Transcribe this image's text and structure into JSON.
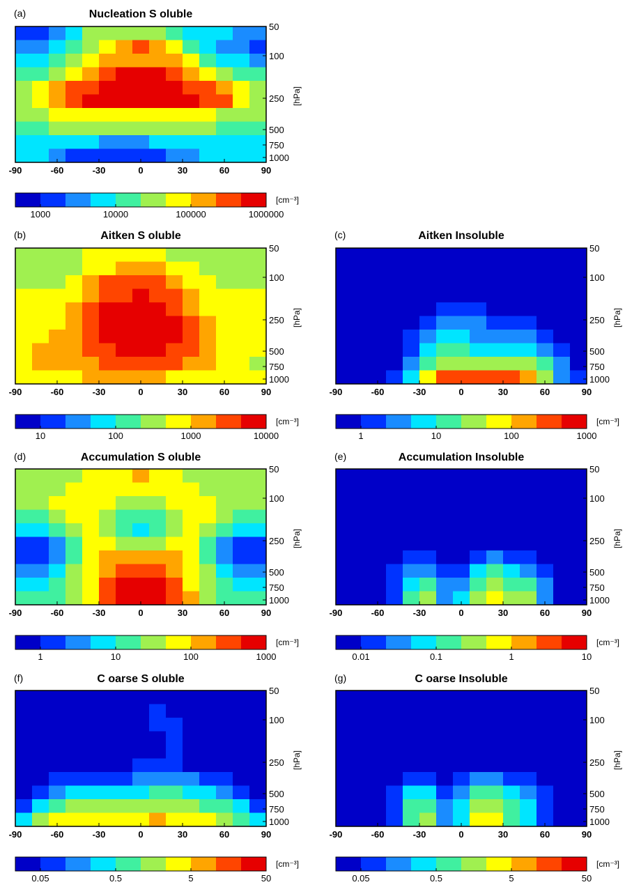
{
  "colors": [
    "#0000c8",
    "#0033ff",
    "#1a8cff",
    "#00e5ff",
    "#40f0a0",
    "#a0f050",
    "#ffff00",
    "#ffa500",
    "#ff4500",
    "#e60000"
  ],
  "common": {
    "lat_ticks": [
      "-90",
      "-60",
      "-30",
      "0",
      "30",
      "60",
      "90"
    ],
    "pressure_ticks": [
      "50",
      "100",
      "250",
      "500",
      "750",
      "1000"
    ],
    "pressure_unit": "[hPa]",
    "colorbar_unit": "[cm⁻³]"
  },
  "chart_data": [
    {
      "id": "a",
      "panel_label": "(a)",
      "title": "Nucleation S oluble",
      "type": "heatmap",
      "colorbar_ticks": [
        "1000",
        "10000",
        "100000",
        "1000000"
      ],
      "levels": [
        [
          1,
          1,
          2,
          3,
          5,
          5,
          5,
          5,
          5,
          4,
          3,
          3,
          3,
          2,
          2
        ],
        [
          2,
          2,
          3,
          4,
          5,
          6,
          7,
          8,
          7,
          6,
          4,
          3,
          2,
          2,
          1
        ],
        [
          3,
          3,
          4,
          5,
          6,
          7,
          7,
          7,
          7,
          7,
          6,
          4,
          3,
          3,
          2
        ],
        [
          4,
          4,
          5,
          6,
          7,
          8,
          9,
          9,
          9,
          8,
          7,
          6,
          5,
          4,
          4
        ],
        [
          5,
          6,
          7,
          8,
          8,
          9,
          9,
          9,
          9,
          9,
          8,
          8,
          7,
          6,
          5
        ],
        [
          5,
          6,
          7,
          8,
          9,
          9,
          9,
          9,
          9,
          9,
          9,
          8,
          8,
          6,
          5
        ],
        [
          5,
          5,
          6,
          6,
          6,
          6,
          6,
          6,
          6,
          6,
          6,
          6,
          5,
          5,
          5
        ],
        [
          4,
          4,
          5,
          5,
          5,
          5,
          5,
          5,
          5,
          5,
          5,
          5,
          4,
          4,
          4
        ],
        [
          3,
          3,
          3,
          3,
          3,
          2,
          2,
          2,
          3,
          3,
          3,
          3,
          3,
          3,
          3
        ],
        [
          3,
          3,
          2,
          1,
          1,
          1,
          1,
          1,
          1,
          2,
          2,
          3,
          3,
          3,
          3
        ]
      ]
    },
    {
      "id": "b",
      "panel_label": "(b)",
      "title": "Aitken S oluble",
      "type": "heatmap",
      "colorbar_ticks": [
        "10",
        "100",
        "1000",
        "10000"
      ],
      "levels": [
        [
          5,
          5,
          5,
          5,
          6,
          6,
          6,
          6,
          6,
          5,
          5,
          5,
          5,
          5,
          5
        ],
        [
          5,
          5,
          5,
          5,
          6,
          6,
          7,
          7,
          7,
          6,
          6,
          5,
          5,
          5,
          5
        ],
        [
          5,
          5,
          5,
          6,
          7,
          8,
          8,
          8,
          8,
          7,
          6,
          6,
          5,
          5,
          5
        ],
        [
          6,
          6,
          6,
          6,
          7,
          8,
          8,
          9,
          8,
          8,
          7,
          6,
          6,
          6,
          6
        ],
        [
          6,
          6,
          6,
          7,
          8,
          9,
          9,
          9,
          9,
          8,
          7,
          6,
          6,
          6,
          6
        ],
        [
          6,
          6,
          6,
          7,
          8,
          9,
          9,
          9,
          9,
          9,
          8,
          7,
          6,
          6,
          6
        ],
        [
          6,
          6,
          7,
          7,
          8,
          9,
          9,
          9,
          9,
          9,
          8,
          7,
          6,
          6,
          6
        ],
        [
          6,
          7,
          7,
          7,
          8,
          8,
          9,
          9,
          9,
          8,
          8,
          7,
          6,
          6,
          6
        ],
        [
          6,
          7,
          7,
          7,
          7,
          8,
          8,
          8,
          8,
          8,
          7,
          7,
          6,
          6,
          5
        ],
        [
          6,
          6,
          6,
          6,
          7,
          7,
          7,
          7,
          7,
          6,
          6,
          6,
          6,
          6,
          6
        ]
      ]
    },
    {
      "id": "c",
      "panel_label": "(c)",
      "title": "Aitken Insoluble",
      "type": "heatmap",
      "colorbar_ticks": [
        "1",
        "10",
        "100",
        "1000"
      ],
      "levels": [
        [
          0,
          0,
          0,
          0,
          0,
          0,
          0,
          0,
          0,
          0,
          0,
          0,
          0,
          0,
          0
        ],
        [
          0,
          0,
          0,
          0,
          0,
          0,
          0,
          0,
          0,
          0,
          0,
          0,
          0,
          0,
          0
        ],
        [
          0,
          0,
          0,
          0,
          0,
          0,
          0,
          0,
          0,
          0,
          0,
          0,
          0,
          0,
          0
        ],
        [
          0,
          0,
          0,
          0,
          0,
          0,
          0,
          0,
          0,
          0,
          0,
          0,
          0,
          0,
          0
        ],
        [
          0,
          0,
          0,
          0,
          0,
          0,
          1,
          1,
          1,
          0,
          0,
          0,
          0,
          0,
          0
        ],
        [
          0,
          0,
          0,
          0,
          0,
          1,
          2,
          2,
          2,
          1,
          1,
          1,
          0,
          0,
          0
        ],
        [
          0,
          0,
          0,
          0,
          1,
          2,
          3,
          3,
          2,
          2,
          2,
          2,
          1,
          0,
          0
        ],
        [
          0,
          0,
          0,
          0,
          1,
          3,
          4,
          4,
          3,
          3,
          3,
          3,
          2,
          1,
          0
        ],
        [
          0,
          0,
          0,
          0,
          2,
          4,
          5,
          5,
          5,
          5,
          5,
          5,
          4,
          2,
          0
        ],
        [
          0,
          0,
          0,
          1,
          3,
          6,
          8,
          8,
          8,
          8,
          8,
          7,
          5,
          2,
          1
        ]
      ]
    },
    {
      "id": "d",
      "panel_label": "(d)",
      "title": "Accumulation S oluble",
      "type": "heatmap",
      "colorbar_ticks": [
        "1",
        "10",
        "100",
        "1000"
      ],
      "levels": [
        [
          5,
          5,
          5,
          5,
          6,
          6,
          6,
          7,
          6,
          6,
          5,
          5,
          5,
          5,
          5
        ],
        [
          5,
          5,
          5,
          6,
          6,
          6,
          6,
          6,
          6,
          6,
          6,
          5,
          5,
          5,
          5
        ],
        [
          5,
          5,
          6,
          6,
          6,
          6,
          5,
          5,
          5,
          6,
          6,
          6,
          5,
          5,
          5
        ],
        [
          4,
          4,
          5,
          6,
          6,
          5,
          4,
          4,
          4,
          5,
          6,
          6,
          5,
          4,
          4
        ],
        [
          3,
          3,
          4,
          5,
          6,
          5,
          4,
          3,
          4,
          5,
          6,
          5,
          4,
          3,
          3
        ],
        [
          1,
          1,
          2,
          4,
          6,
          6,
          5,
          5,
          5,
          6,
          6,
          4,
          2,
          1,
          1
        ],
        [
          1,
          1,
          2,
          4,
          6,
          7,
          7,
          7,
          7,
          7,
          6,
          4,
          2,
          1,
          1
        ],
        [
          2,
          2,
          3,
          5,
          6,
          7,
          8,
          8,
          8,
          7,
          6,
          5,
          3,
          2,
          2
        ],
        [
          3,
          3,
          4,
          5,
          6,
          8,
          9,
          9,
          9,
          8,
          6,
          5,
          4,
          3,
          3
        ],
        [
          4,
          4,
          4,
          5,
          6,
          8,
          9,
          9,
          9,
          8,
          7,
          5,
          4,
          4,
          4
        ]
      ]
    },
    {
      "id": "e",
      "panel_label": "(e)",
      "title": "Accumulation Insoluble",
      "type": "heatmap",
      "colorbar_ticks": [
        "0.01",
        "0.1",
        "1",
        "10"
      ],
      "levels": [
        [
          0,
          0,
          0,
          0,
          0,
          0,
          0,
          0,
          0,
          0,
          0,
          0,
          0,
          0,
          0
        ],
        [
          0,
          0,
          0,
          0,
          0,
          0,
          0,
          0,
          0,
          0,
          0,
          0,
          0,
          0,
          0
        ],
        [
          0,
          0,
          0,
          0,
          0,
          0,
          0,
          0,
          0,
          0,
          0,
          0,
          0,
          0,
          0
        ],
        [
          0,
          0,
          0,
          0,
          0,
          0,
          0,
          0,
          0,
          0,
          0,
          0,
          0,
          0,
          0
        ],
        [
          0,
          0,
          0,
          0,
          0,
          0,
          0,
          0,
          0,
          0,
          0,
          0,
          0,
          0,
          0
        ],
        [
          0,
          0,
          0,
          0,
          0,
          0,
          0,
          0,
          0,
          0,
          0,
          0,
          0,
          0,
          0
        ],
        [
          0,
          0,
          0,
          0,
          1,
          1,
          0,
          0,
          1,
          2,
          1,
          1,
          0,
          0,
          0
        ],
        [
          0,
          0,
          0,
          1,
          2,
          2,
          1,
          1,
          3,
          4,
          3,
          2,
          1,
          0,
          0
        ],
        [
          0,
          0,
          0,
          1,
          3,
          4,
          2,
          2,
          4,
          5,
          4,
          4,
          2,
          0,
          0
        ],
        [
          0,
          0,
          0,
          1,
          4,
          5,
          2,
          3,
          5,
          6,
          5,
          5,
          2,
          0,
          0
        ]
      ]
    },
    {
      "id": "f",
      "panel_label": "(f)",
      "title": "C oarse S oluble",
      "type": "heatmap",
      "colorbar_ticks": [
        "0.05",
        "0.5",
        "5",
        "50"
      ],
      "levels": [
        [
          0,
          0,
          0,
          0,
          0,
          0,
          0,
          0,
          0,
          0,
          0,
          0,
          0,
          0,
          0
        ],
        [
          0,
          0,
          0,
          0,
          0,
          0,
          0,
          0,
          1,
          0,
          0,
          0,
          0,
          0,
          0
        ],
        [
          0,
          0,
          0,
          0,
          0,
          0,
          0,
          0,
          1,
          1,
          0,
          0,
          0,
          0,
          0
        ],
        [
          0,
          0,
          0,
          0,
          0,
          0,
          0,
          0,
          0,
          1,
          0,
          0,
          0,
          0,
          0
        ],
        [
          0,
          0,
          0,
          0,
          0,
          0,
          0,
          0,
          0,
          1,
          0,
          0,
          0,
          0,
          0
        ],
        [
          0,
          0,
          0,
          0,
          0,
          0,
          0,
          1,
          1,
          1,
          0,
          0,
          0,
          0,
          0
        ],
        [
          0,
          0,
          1,
          1,
          1,
          1,
          1,
          2,
          2,
          2,
          2,
          1,
          1,
          0,
          0
        ],
        [
          0,
          1,
          2,
          3,
          3,
          3,
          3,
          3,
          4,
          4,
          3,
          3,
          2,
          1,
          0
        ],
        [
          1,
          3,
          4,
          5,
          5,
          5,
          5,
          5,
          5,
          5,
          5,
          4,
          4,
          3,
          1
        ],
        [
          3,
          5,
          6,
          6,
          6,
          6,
          6,
          6,
          7,
          6,
          6,
          6,
          5,
          4,
          3
        ]
      ]
    },
    {
      "id": "g",
      "panel_label": "(g)",
      "title": "C oarse Insoluble",
      "type": "heatmap",
      "colorbar_ticks": [
        "0.05",
        "0.5",
        "5",
        "50"
      ],
      "levels": [
        [
          0,
          0,
          0,
          0,
          0,
          0,
          0,
          0,
          0,
          0,
          0,
          0,
          0,
          0,
          0
        ],
        [
          0,
          0,
          0,
          0,
          0,
          0,
          0,
          0,
          0,
          0,
          0,
          0,
          0,
          0,
          0
        ],
        [
          0,
          0,
          0,
          0,
          0,
          0,
          0,
          0,
          0,
          0,
          0,
          0,
          0,
          0,
          0
        ],
        [
          0,
          0,
          0,
          0,
          0,
          0,
          0,
          0,
          0,
          0,
          0,
          0,
          0,
          0,
          0
        ],
        [
          0,
          0,
          0,
          0,
          0,
          0,
          0,
          0,
          0,
          0,
          0,
          0,
          0,
          0,
          0
        ],
        [
          0,
          0,
          0,
          0,
          0,
          0,
          0,
          0,
          0,
          0,
          0,
          0,
          0,
          0,
          0
        ],
        [
          0,
          0,
          0,
          0,
          1,
          1,
          0,
          1,
          2,
          2,
          1,
          1,
          0,
          0,
          0
        ],
        [
          0,
          0,
          0,
          1,
          3,
          3,
          1,
          2,
          4,
          4,
          3,
          2,
          1,
          0,
          0
        ],
        [
          0,
          0,
          0,
          1,
          4,
          4,
          2,
          3,
          5,
          5,
          4,
          3,
          1,
          0,
          0
        ],
        [
          0,
          0,
          0,
          1,
          4,
          5,
          2,
          3,
          6,
          6,
          4,
          3,
          1,
          0,
          0
        ]
      ]
    }
  ]
}
